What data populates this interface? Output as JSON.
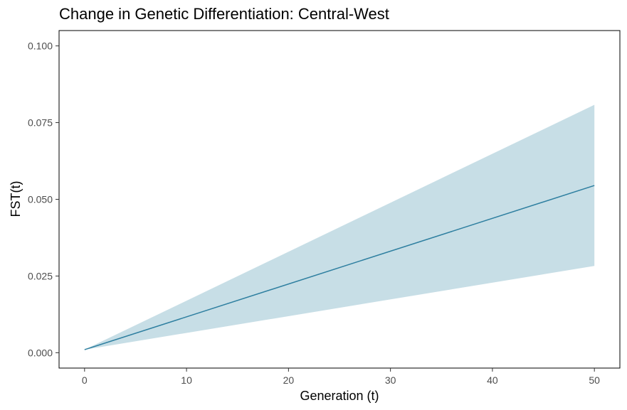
{
  "chart_data": {
    "type": "line",
    "title": "Change in Genetic Differentiation: Central-West",
    "xlabel": "Generation (t)",
    "ylabel": "FST(t)",
    "xlim": [
      -2.5,
      52.5
    ],
    "ylim": [
      -0.005,
      0.105
    ],
    "x_ticks": [
      0,
      10,
      20,
      30,
      40,
      50
    ],
    "x_tick_labels": [
      "0",
      "10",
      "20",
      "30",
      "40",
      "50"
    ],
    "y_ticks": [
      0.0,
      0.025,
      0.05,
      0.075,
      0.1
    ],
    "y_tick_labels": [
      "0.000",
      "0.025",
      "0.050",
      "0.075",
      "0.100"
    ],
    "grid": false,
    "legend": "none",
    "colors": {
      "line": "#2e7fa0",
      "ribbon": "#c7dee6",
      "panel_border": "#000000"
    },
    "series": [
      {
        "x": [
          0,
          50
        ],
        "y": [
          0.001,
          0.0545
        ],
        "lower": [
          0.001,
          0.0283
        ],
        "upper": [
          0.001,
          0.0808
        ]
      }
    ]
  }
}
